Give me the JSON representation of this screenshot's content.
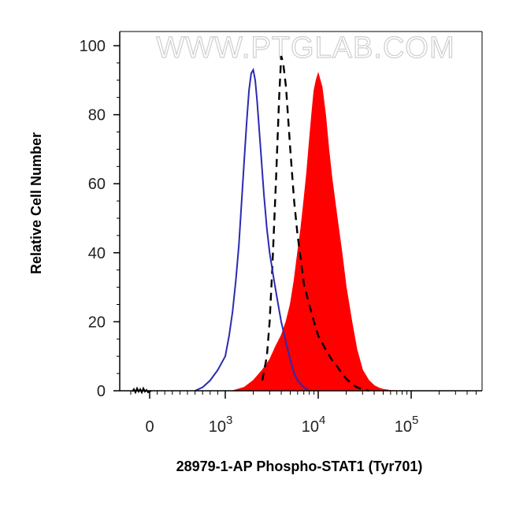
{
  "chart_data": {
    "type": "area",
    "title": "",
    "xlabel": "28979-1-AP Phospho-STAT1 (Tyr701)",
    "ylabel": "Relative Cell Number",
    "watermark": "WWW.PTGLAB.COM",
    "x_scale": "biexponential",
    "ylim": [
      0,
      100
    ],
    "x_ticks": [
      {
        "value": 0,
        "label": "0",
        "exp": ""
      },
      {
        "value": 1000,
        "label": "10",
        "exp": "3"
      },
      {
        "value": 10000,
        "label": "10",
        "exp": "4"
      },
      {
        "value": 100000,
        "label": "10",
        "exp": "5"
      }
    ],
    "y_ticks": [
      0,
      20,
      40,
      60,
      80,
      100
    ],
    "grid": false,
    "series": [
      {
        "style": "filled",
        "color": "#ff0000",
        "x": [
          1200,
          1600,
          2000,
          2500,
          3000,
          3500,
          4000,
          4500,
          5000,
          5500,
          6000,
          6500,
          7000,
          7500,
          8000,
          8500,
          9000,
          9500,
          10000,
          11000,
          12000,
          13000,
          14000,
          16000,
          18000,
          20000,
          23000,
          26000,
          30000,
          35000,
          40000,
          45000,
          50000,
          60000,
          70000
        ],
        "y": [
          0,
          1,
          3,
          6,
          9,
          13,
          16,
          20,
          25,
          32,
          40,
          47,
          55,
          63,
          72,
          80,
          87,
          90,
          92,
          88,
          80,
          70,
          62,
          50,
          40,
          30,
          20,
          12,
          6,
          3,
          1.5,
          0.8,
          0.4,
          0.1,
          0
        ]
      },
      {
        "style": "dashed",
        "color": "#000000",
        "x": [
          2500,
          2800,
          3000,
          3200,
          3500,
          3800,
          4000,
          4200,
          4500,
          5000,
          5500,
          6000,
          6500,
          7000,
          8000,
          9000,
          10000,
          12000,
          14000,
          16000,
          18000,
          20000,
          23000,
          26000,
          30000,
          35000
        ],
        "y": [
          3,
          10,
          20,
          35,
          60,
          85,
          97,
          95,
          88,
          70,
          55,
          45,
          38,
          31,
          25,
          20,
          16,
          12,
          9,
          7,
          5,
          3.5,
          2,
          1,
          0.4,
          0
        ]
      },
      {
        "style": "line",
        "color": "#2b2bb0",
        "x": [
          600,
          700,
          800,
          900,
          1000,
          1100,
          1200,
          1300,
          1400,
          1500,
          1600,
          1700,
          1800,
          1900,
          2000,
          2100,
          2200,
          2400,
          2600,
          2800,
          3000,
          3300,
          3600,
          4000,
          4500,
          5000,
          5500,
          6000,
          7000,
          8000
        ],
        "y": [
          0,
          1,
          3,
          6,
          10,
          16,
          23,
          32,
          42,
          55,
          67,
          78,
          87,
          92,
          93,
          90,
          84,
          70,
          57,
          47,
          40,
          33,
          27,
          20,
          14,
          9,
          5,
          3,
          1,
          0
        ]
      }
    ]
  }
}
